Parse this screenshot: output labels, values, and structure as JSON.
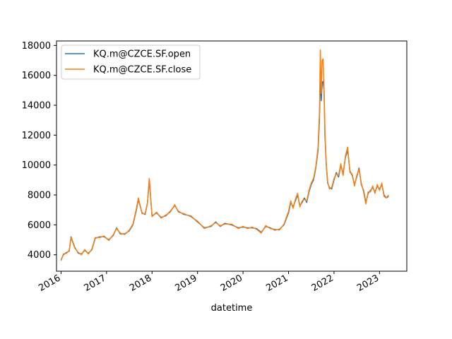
{
  "chart_data": {
    "type": "line",
    "title": "",
    "xlabel": "datetime",
    "ylabel": "",
    "xlim": [
      2015.9,
      2023.6
    ],
    "ylim": [
      2900,
      18300
    ],
    "x_ticks": [
      {
        "value": 2016,
        "label": "2016"
      },
      {
        "value": 2017,
        "label": "2017"
      },
      {
        "value": 2018,
        "label": "2018"
      },
      {
        "value": 2019,
        "label": "2019"
      },
      {
        "value": 2020,
        "label": "2020"
      },
      {
        "value": 2021,
        "label": "2021"
      },
      {
        "value": 2022,
        "label": "2022"
      },
      {
        "value": 2023,
        "label": "2023"
      }
    ],
    "y_ticks": [
      {
        "value": 4000,
        "label": "4000"
      },
      {
        "value": 6000,
        "label": "6000"
      },
      {
        "value": 8000,
        "label": "8000"
      },
      {
        "value": 10000,
        "label": "10000"
      },
      {
        "value": 12000,
        "label": "12000"
      },
      {
        "value": 14000,
        "label": "14000"
      },
      {
        "value": 16000,
        "label": "16000"
      },
      {
        "value": 18000,
        "label": "18000"
      }
    ],
    "grid": false,
    "legend": "upper-left",
    "series": [
      {
        "name": "KQ.m@CZCE.SF.open",
        "color": "#1f77b4",
        "x": [
          2016.0,
          2016.05,
          2016.12,
          2016.18,
          2016.22,
          2016.3,
          2016.38,
          2016.45,
          2016.52,
          2016.6,
          2016.68,
          2016.75,
          2016.85,
          2016.95,
          2017.05,
          2017.15,
          2017.22,
          2017.3,
          2017.4,
          2017.5,
          2017.58,
          2017.65,
          2017.7,
          2017.78,
          2017.85,
          2017.9,
          2017.94,
          2018.0,
          2018.1,
          2018.2,
          2018.3,
          2018.4,
          2018.5,
          2018.58,
          2018.7,
          2018.85,
          2019.0,
          2019.15,
          2019.3,
          2019.4,
          2019.5,
          2019.6,
          2019.75,
          2019.9,
          2020.0,
          2020.1,
          2020.2,
          2020.3,
          2020.4,
          2020.5,
          2020.6,
          2020.7,
          2020.8,
          2020.9,
          2021.0,
          2021.05,
          2021.1,
          2021.15,
          2021.2,
          2021.25,
          2021.3,
          2021.35,
          2021.4,
          2021.45,
          2021.5,
          2021.55,
          2021.6,
          2021.65,
          2021.68,
          2021.7,
          2021.72,
          2021.74,
          2021.76,
          2021.78,
          2021.8,
          2021.83,
          2021.86,
          2021.9,
          2021.95,
          2022.0,
          2022.05,
          2022.1,
          2022.15,
          2022.2,
          2022.25,
          2022.3,
          2022.35,
          2022.4,
          2022.45,
          2022.5,
          2022.55,
          2022.6,
          2022.65,
          2022.7,
          2022.75,
          2022.8,
          2022.85,
          2022.9,
          2022.95,
          2023.0,
          2023.05,
          2023.1,
          2023.15,
          2023.2
        ],
        "values": [
          3650,
          4000,
          4150,
          4250,
          5200,
          4500,
          4100,
          4050,
          4300,
          4100,
          4350,
          5100,
          5200,
          5200,
          5000,
          5300,
          5800,
          5400,
          5400,
          5600,
          6000,
          6900,
          7700,
          6800,
          6700,
          7500,
          9000,
          6600,
          6800,
          6500,
          6600,
          6900,
          7300,
          6900,
          6700,
          6600,
          6200,
          5800,
          5900,
          6200,
          5900,
          6100,
          6000,
          5800,
          5850,
          5800,
          5800,
          5750,
          5500,
          5900,
          5800,
          5650,
          5700,
          6000,
          6800,
          7500,
          7200,
          7600,
          8000,
          7300,
          7500,
          7800,
          7500,
          8200,
          8700,
          9000,
          9800,
          11000,
          13000,
          15900,
          14300,
          15500,
          15600,
          15000,
          12000,
          10000,
          8800,
          8500,
          8400,
          9000,
          9500,
          9200,
          10000,
          9400,
          10500,
          11000,
          9600,
          9300,
          8700,
          9200,
          9800,
          8700,
          8300,
          7500,
          8100,
          8300,
          8500,
          8200,
          8600,
          8400,
          8700,
          8000,
          7800,
          7900
        ]
      },
      {
        "name": "KQ.m@CZCE.SF.close",
        "color": "#ff7f0e",
        "x": [
          2016.0,
          2016.05,
          2016.12,
          2016.18,
          2016.22,
          2016.3,
          2016.38,
          2016.45,
          2016.52,
          2016.6,
          2016.68,
          2016.75,
          2016.85,
          2016.95,
          2017.05,
          2017.15,
          2017.22,
          2017.3,
          2017.4,
          2017.5,
          2017.58,
          2017.65,
          2017.7,
          2017.78,
          2017.85,
          2017.9,
          2017.94,
          2018.0,
          2018.1,
          2018.2,
          2018.3,
          2018.4,
          2018.5,
          2018.58,
          2018.7,
          2018.85,
          2019.0,
          2019.15,
          2019.3,
          2019.4,
          2019.5,
          2019.6,
          2019.75,
          2019.9,
          2020.0,
          2020.1,
          2020.2,
          2020.3,
          2020.4,
          2020.5,
          2020.6,
          2020.7,
          2020.8,
          2020.9,
          2021.0,
          2021.05,
          2021.1,
          2021.15,
          2021.2,
          2021.25,
          2021.3,
          2021.35,
          2021.4,
          2021.45,
          2021.5,
          2021.55,
          2021.6,
          2021.65,
          2021.68,
          2021.7,
          2021.72,
          2021.74,
          2021.76,
          2021.78,
          2021.8,
          2021.83,
          2021.86,
          2021.9,
          2021.95,
          2022.0,
          2022.05,
          2022.1,
          2022.15,
          2022.2,
          2022.25,
          2022.3,
          2022.35,
          2022.4,
          2022.45,
          2022.5,
          2022.55,
          2022.6,
          2022.65,
          2022.7,
          2022.75,
          2022.8,
          2022.85,
          2022.9,
          2022.95,
          2023.0,
          2023.05,
          2023.1,
          2023.15,
          2023.2
        ],
        "values": [
          3600,
          4050,
          4100,
          4300,
          5150,
          4450,
          4150,
          4000,
          4350,
          4050,
          4400,
          5150,
          5150,
          5250,
          4950,
          5350,
          5750,
          5450,
          5350,
          5650,
          6050,
          7000,
          7800,
          6750,
          6750,
          7450,
          9100,
          6550,
          6850,
          6450,
          6650,
          6850,
          7350,
          6850,
          6750,
          6550,
          6250,
          5750,
          5950,
          6150,
          5950,
          6050,
          6050,
          5750,
          5900,
          5750,
          5850,
          5700,
          5450,
          5950,
          5750,
          5700,
          5650,
          6050,
          6900,
          7600,
          7100,
          7700,
          8100,
          7200,
          7600,
          7700,
          7600,
          8300,
          8800,
          9100,
          9900,
          11200,
          13500,
          17700,
          14800,
          17000,
          17100,
          15200,
          12300,
          10100,
          8900,
          8400,
          8500,
          9100,
          9400,
          9300,
          10100,
          9300,
          10600,
          11200,
          9500,
          9400,
          8600,
          9300,
          9700,
          8800,
          8200,
          7400,
          8200,
          8200,
          8600,
          8100,
          8700,
          8300,
          8800,
          7900,
          7800,
          8000
        ]
      }
    ]
  }
}
